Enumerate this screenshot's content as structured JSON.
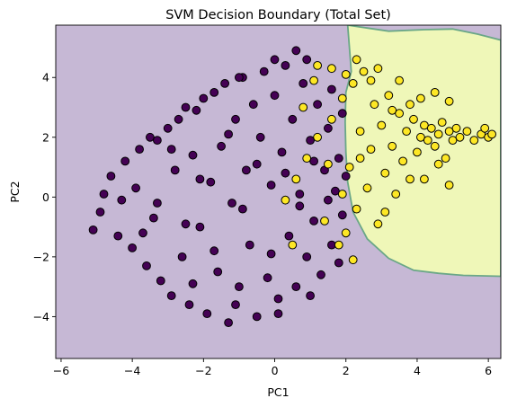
{
  "chart_data": {
    "type": "scatter",
    "title": "SVM Decision Boundary (Total Set)",
    "xlabel": "PC1",
    "ylabel": "PC2",
    "xlim": [
      -6.15,
      6.35
    ],
    "ylim": [
      -5.4,
      5.75
    ],
    "xticks": [
      -6,
      -4,
      -2,
      0,
      2,
      4,
      6
    ],
    "yticks": [
      -4,
      -2,
      0,
      2,
      4
    ],
    "xtick_labels": [
      "−6",
      "−4",
      "−2",
      "0",
      "2",
      "4",
      "6"
    ],
    "ytick_labels": [
      "−4",
      "−2",
      "0",
      "2",
      "4"
    ],
    "grid": false,
    "legend": "none",
    "colors": {
      "region_class0": "#c6b8d5",
      "region_class1": "#eff7b8",
      "boundary": "#6aa787",
      "class0_points": "#440154",
      "class1_points": "#fde725",
      "point_edge": "#000000"
    },
    "decision_region_class1": {
      "boundary": [
        [
          2.05,
          5.75
        ],
        [
          3.2,
          5.55
        ],
        [
          4.2,
          5.6
        ],
        [
          5.0,
          5.62
        ],
        [
          5.7,
          5.45
        ],
        [
          6.35,
          5.25
        ],
        [
          6.35,
          -2.65
        ],
        [
          5.3,
          -2.62
        ],
        [
          4.6,
          -2.55
        ],
        [
          3.9,
          -2.45
        ],
        [
          3.2,
          -2.05
        ],
        [
          2.6,
          -1.4
        ],
        [
          2.2,
          -0.5
        ],
        [
          2.05,
          0.5
        ],
        [
          2.0,
          1.5
        ],
        [
          1.98,
          2.5
        ],
        [
          2.0,
          3.5
        ],
        [
          2.15,
          4.2
        ]
      ]
    },
    "series": [
      {
        "points": [
          [
            -5.1,
            -1.1
          ],
          [
            -4.9,
            -0.5
          ],
          [
            -4.8,
            0.1
          ],
          [
            -4.6,
            0.7
          ],
          [
            -4.4,
            -1.3
          ],
          [
            -4.2,
            1.2
          ],
          [
            -4.0,
            -1.7
          ],
          [
            -3.9,
            0.3
          ],
          [
            -3.8,
            1.6
          ],
          [
            -3.6,
            -2.3
          ],
          [
            -3.5,
            2.0
          ],
          [
            -3.4,
            -0.7
          ],
          [
            -3.3,
            1.9
          ],
          [
            -3.2,
            -2.8
          ],
          [
            -3.0,
            2.3
          ],
          [
            -2.9,
            -3.3
          ],
          [
            -2.8,
            0.9
          ],
          [
            -2.7,
            2.6
          ],
          [
            -2.6,
            -2.0
          ],
          [
            -2.5,
            3.0
          ],
          [
            -2.4,
            -3.6
          ],
          [
            -2.3,
            1.4
          ],
          [
            -2.2,
            2.9
          ],
          [
            -2.1,
            -1.0
          ],
          [
            -2.0,
            3.3
          ],
          [
            -1.9,
            -3.9
          ],
          [
            -1.8,
            0.5
          ],
          [
            -1.7,
            3.5
          ],
          [
            -1.6,
            -2.5
          ],
          [
            -1.5,
            1.7
          ],
          [
            -1.4,
            3.8
          ],
          [
            -1.3,
            -4.2
          ],
          [
            -1.2,
            -0.2
          ],
          [
            -1.1,
            2.6
          ],
          [
            -1.0,
            -3.0
          ],
          [
            -0.9,
            4.0
          ],
          [
            -0.8,
            0.9
          ],
          [
            -0.7,
            -1.6
          ],
          [
            -0.6,
            3.1
          ],
          [
            -0.5,
            -4.0
          ],
          [
            -0.4,
            2.0
          ],
          [
            -0.3,
            4.2
          ],
          [
            -0.2,
            -2.7
          ],
          [
            -0.1,
            0.4
          ],
          [
            0.0,
            3.4
          ],
          [
            0.1,
            -3.4
          ],
          [
            0.2,
            1.5
          ],
          [
            0.3,
            4.4
          ],
          [
            0.4,
            -1.3
          ],
          [
            0.5,
            2.6
          ],
          [
            0.6,
            -3.0
          ],
          [
            0.7,
            0.1
          ],
          [
            0.8,
            3.8
          ],
          [
            0.9,
            -2.0
          ],
          [
            1.0,
            1.9
          ],
          [
            1.1,
            -0.8
          ],
          [
            1.2,
            3.1
          ],
          [
            1.3,
            -2.6
          ],
          [
            1.4,
            0.9
          ],
          [
            1.5,
            2.3
          ],
          [
            1.6,
            -1.6
          ],
          [
            1.7,
            0.2
          ],
          [
            1.8,
            1.3
          ],
          [
            1.9,
            -0.6
          ],
          [
            2.0,
            0.7
          ],
          [
            -3.3,
            -0.2
          ],
          [
            -2.9,
            1.6
          ],
          [
            -2.5,
            -0.9
          ],
          [
            -2.1,
            0.6
          ],
          [
            -1.7,
            -1.8
          ],
          [
            -1.3,
            2.1
          ],
          [
            -0.9,
            -0.4
          ],
          [
            -0.5,
            1.1
          ],
          [
            -0.1,
            -1.9
          ],
          [
            0.3,
            0.8
          ],
          [
            0.7,
            -0.3
          ],
          [
            1.1,
            1.2
          ],
          [
            1.5,
            -0.1
          ],
          [
            -4.3,
            -0.1
          ],
          [
            -3.7,
            -1.2
          ],
          [
            -2.3,
            -2.9
          ],
          [
            -1.1,
            -3.6
          ],
          [
            0.1,
            -3.9
          ],
          [
            1.0,
            -3.3
          ],
          [
            1.8,
            -2.2
          ],
          [
            1.9,
            2.8
          ],
          [
            1.6,
            3.6
          ],
          [
            0.9,
            4.6
          ],
          [
            0.0,
            4.6
          ],
          [
            -1.0,
            4.0
          ],
          [
            0.6,
            4.9
          ]
        ]
      },
      {
        "points": [
          [
            0.3,
            -0.1
          ],
          [
            0.6,
            0.6
          ],
          [
            0.9,
            1.3
          ],
          [
            1.2,
            2.0
          ],
          [
            1.4,
            -0.8
          ],
          [
            1.6,
            2.6
          ],
          [
            1.8,
            -1.6
          ],
          [
            1.9,
            3.3
          ],
          [
            2.0,
            -1.2
          ],
          [
            2.1,
            1.0
          ],
          [
            2.2,
            3.8
          ],
          [
            2.3,
            -0.4
          ],
          [
            2.4,
            2.2
          ],
          [
            2.5,
            4.2
          ],
          [
            2.6,
            0.3
          ],
          [
            2.7,
            1.6
          ],
          [
            2.8,
            3.1
          ],
          [
            2.9,
            -0.9
          ],
          [
            3.0,
            2.4
          ],
          [
            3.1,
            0.8
          ],
          [
            3.2,
            3.4
          ],
          [
            3.3,
            1.7
          ],
          [
            3.4,
            0.1
          ],
          [
            3.5,
            2.8
          ],
          [
            3.6,
            1.2
          ],
          [
            3.7,
            2.2
          ],
          [
            3.8,
            0.6
          ],
          [
            3.9,
            2.6
          ],
          [
            4.0,
            1.5
          ],
          [
            4.1,
            2.0
          ],
          [
            4.2,
            2.4
          ],
          [
            4.3,
            1.9
          ],
          [
            4.4,
            2.3
          ],
          [
            4.5,
            1.7
          ],
          [
            4.6,
            2.1
          ],
          [
            4.7,
            2.5
          ],
          [
            4.8,
            1.3
          ],
          [
            4.9,
            2.2
          ],
          [
            5.0,
            1.9
          ],
          [
            5.1,
            2.3
          ],
          [
            5.2,
            2.0
          ],
          [
            5.4,
            2.2
          ],
          [
            5.6,
            1.9
          ],
          [
            5.8,
            2.1
          ],
          [
            5.9,
            2.3
          ],
          [
            6.0,
            2.0
          ],
          [
            6.1,
            2.1
          ],
          [
            1.1,
            3.9
          ],
          [
            1.6,
            4.3
          ],
          [
            2.3,
            4.6
          ],
          [
            2.9,
            4.3
          ],
          [
            3.5,
            3.9
          ],
          [
            4.1,
            3.3
          ],
          [
            4.5,
            3.5
          ],
          [
            4.9,
            3.2
          ],
          [
            4.2,
            0.6
          ],
          [
            4.6,
            1.1
          ],
          [
            4.9,
            0.4
          ],
          [
            3.1,
            -0.5
          ],
          [
            2.2,
            -2.1
          ],
          [
            1.5,
            1.1
          ],
          [
            0.8,
            3.0
          ],
          [
            2.7,
            3.9
          ],
          [
            3.3,
            2.9
          ],
          [
            3.8,
            3.1
          ],
          [
            2.4,
            1.3
          ],
          [
            1.9,
            0.1
          ],
          [
            0.5,
            -1.6
          ],
          [
            1.2,
            4.4
          ],
          [
            2.0,
            4.1
          ]
        ]
      }
    ]
  }
}
